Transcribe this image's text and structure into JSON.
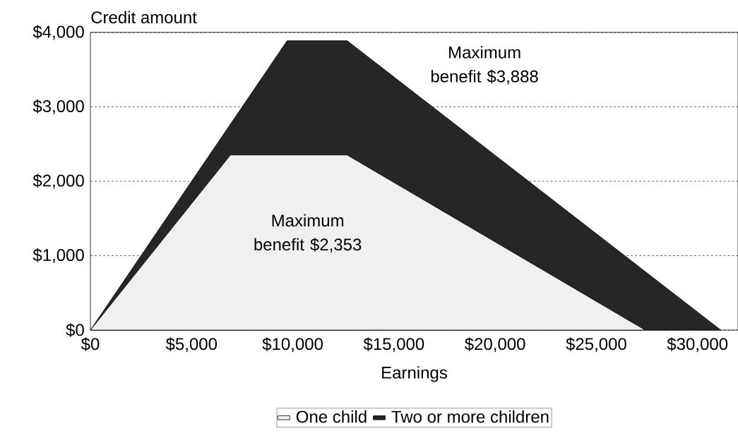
{
  "chart_data": {
    "type": "area",
    "xlabel": "Earnings",
    "ylabel": "Credit amount",
    "xlim": [
      0,
      32000
    ],
    "ylim": [
      0,
      4000
    ],
    "xticks": [
      {
        "value": 0,
        "label": "$0"
      },
      {
        "value": 5000,
        "label": "$5,000"
      },
      {
        "value": 10000,
        "label": "$10,000"
      },
      {
        "value": 15000,
        "label": "$15,000"
      },
      {
        "value": 20000,
        "label": "$20,000"
      },
      {
        "value": 25000,
        "label": "$25,000"
      },
      {
        "value": 30000,
        "label": "$30,000"
      }
    ],
    "yticks": [
      {
        "value": 0,
        "label": "$0"
      },
      {
        "value": 1000,
        "label": "$1,000"
      },
      {
        "value": 2000,
        "label": "$2,000"
      },
      {
        "value": 3000,
        "label": "$3,000"
      },
      {
        "value": 4000,
        "label": "$4,000"
      }
    ],
    "grid": "y",
    "legend": "bottom",
    "series": [
      {
        "name": "One child",
        "color": "#f0f0f0",
        "x": [
          0,
          6920,
          12690,
          27413
        ],
        "values": [
          0,
          2353,
          2353,
          0
        ]
      },
      {
        "name": "Two or more children",
        "color": "#262626",
        "x": [
          0,
          9720,
          12690,
          31152
        ],
        "values": [
          0,
          3888,
          3888,
          0
        ]
      }
    ],
    "annotations": [
      "Maximum benefit $3,888",
      "Maximum benefit $2,353"
    ]
  }
}
